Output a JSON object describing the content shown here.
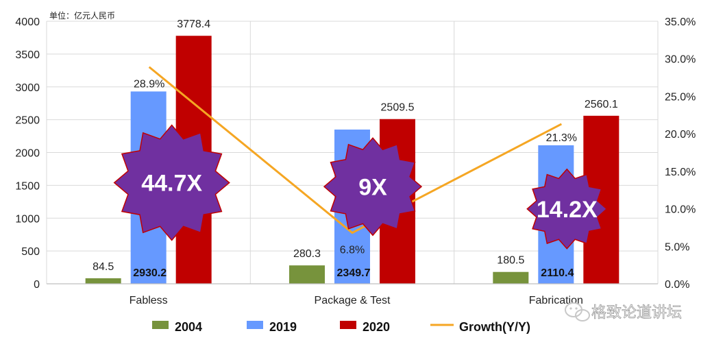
{
  "chart_data": {
    "type": "bar",
    "unit_label": "单位：亿元人民币",
    "categories": [
      "Fabless",
      "Package & Test",
      "Fabrication"
    ],
    "series": [
      {
        "name": "2004",
        "values": [
          84.5,
          280.3,
          180.5
        ],
        "color": "#77933c"
      },
      {
        "name": "2019",
        "values": [
          2930.2,
          2349.7,
          2110.4
        ],
        "color": "#6699ff"
      },
      {
        "name": "2020",
        "values": [
          3778.4,
          2509.5,
          2560.1
        ],
        "color": "#c00000"
      }
    ],
    "line_series": {
      "name": "Growth(Y/Y)",
      "values": [
        28.9,
        6.8,
        21.3
      ],
      "color": "#f5a623",
      "axis": "right"
    },
    "data_labels": {
      "2004": [
        "84.5",
        "280.3",
        "180.5"
      ],
      "2019": [
        "2930.2",
        "2349.7",
        "2110.4"
      ],
      "2020": [
        "3778.4",
        "2509.5",
        "2560.1"
      ],
      "growth": [
        "28.9%",
        "6.8%",
        "21.3%"
      ]
    },
    "multipliers": [
      "44.7X",
      "9X",
      "14.2X"
    ],
    "multiplier_color": "#7030a0",
    "y_left": {
      "min": 0,
      "max": 4000,
      "step": 500,
      "ticks": [
        "0",
        "500",
        "1000",
        "1500",
        "2000",
        "2500",
        "3000",
        "3500",
        "4000"
      ]
    },
    "y_right": {
      "min": 0,
      "max": 35,
      "step": 5,
      "ticks": [
        "0.0%",
        "5.0%",
        "10.0%",
        "15.0%",
        "20.0%",
        "25.0%",
        "30.0%",
        "35.0%"
      ]
    },
    "grid": true,
    "legend_position": "bottom"
  },
  "watermark": {
    "text": "格致论道讲坛",
    "icon": "wechat-icon"
  }
}
